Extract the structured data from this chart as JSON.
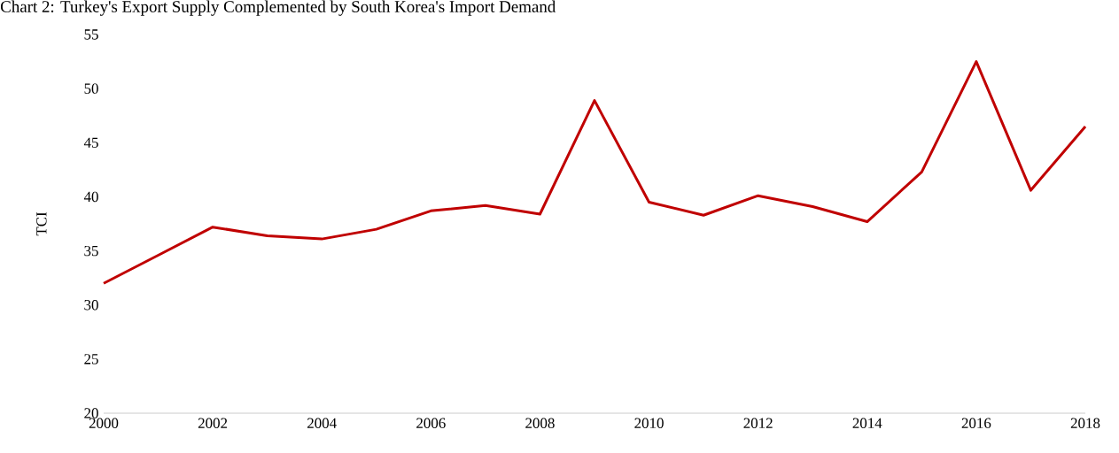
{
  "chart_data": {
    "type": "line",
    "title": "Chart 2: Turkey's Export Supply Complemented by South Korea's Import Demand",
    "ylabel": "TCI",
    "x": [
      2000,
      2001,
      2002,
      2003,
      2004,
      2005,
      2006,
      2007,
      2008,
      2009,
      2010,
      2011,
      2012,
      2013,
      2014,
      2015,
      2016,
      2017,
      2018
    ],
    "series": [
      {
        "color": "#c00000",
        "values": [
          32.0,
          34.6,
          37.2,
          36.4,
          36.1,
          37.0,
          38.7,
          39.2,
          38.4,
          48.9,
          39.5,
          38.3,
          40.1,
          39.1,
          37.7,
          42.3,
          52.5,
          40.6,
          46.5
        ]
      }
    ],
    "xlim": [
      2000,
      2018
    ],
    "xticks": [
      2000,
      2002,
      2004,
      2006,
      2008,
      2010,
      2012,
      2014,
      2016,
      2018
    ],
    "ylim": [
      20,
      55
    ],
    "yticks": [
      20,
      25,
      30,
      35,
      40,
      45,
      50,
      55
    ],
    "grid": false,
    "marker": "none",
    "line_style": "solid"
  }
}
